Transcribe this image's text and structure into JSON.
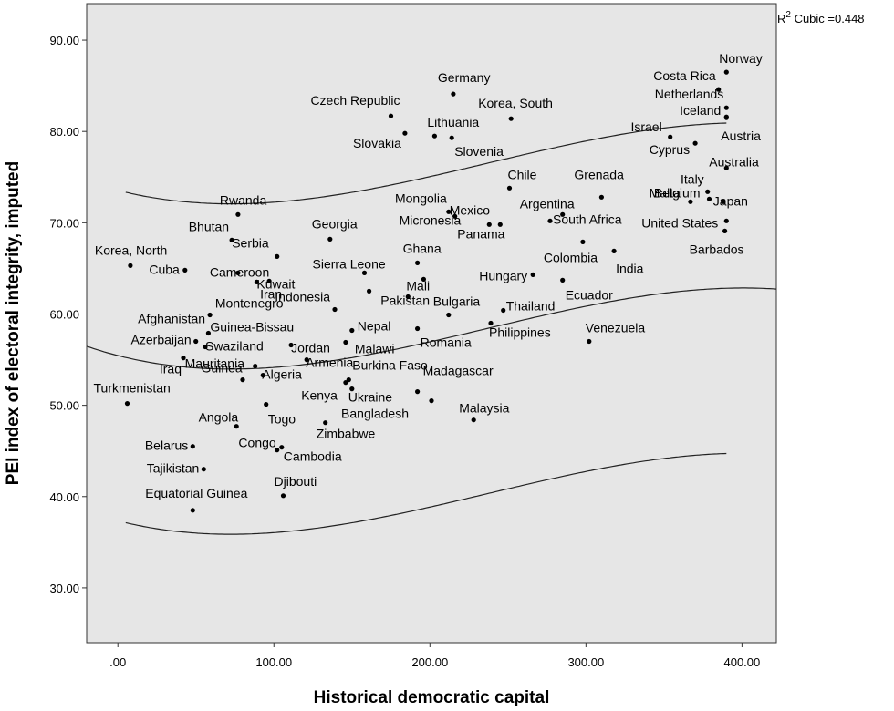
{
  "chart_data": {
    "type": "scatter",
    "xlabel": "Historical democratic capital",
    "ylabel": "PEI index of electoral integrity, imputed",
    "xlim": [
      -20,
      422
    ],
    "ylim": [
      24,
      94
    ],
    "x_ticks": [
      ".00",
      "100.00",
      "200.00",
      "300.00",
      "400.00"
    ],
    "x_tick_values": [
      0,
      100,
      200,
      300,
      400
    ],
    "y_ticks": [
      "30.00",
      "40.00",
      "50.00",
      "60.00",
      "70.00",
      "80.00",
      "90.00"
    ],
    "y_tick_values": [
      30,
      40,
      50,
      60,
      70,
      80,
      90
    ],
    "grid": false,
    "annotation": {
      "prefix": "R",
      "sup": "2",
      "text": " Cubic =0.448"
    },
    "fit": {
      "type": "cubic",
      "coef": [
        55.45,
        -0.0435,
        0.000355,
        -5e-07
      ],
      "x_range": [
        -20,
        422
      ],
      "band_upper_offset": 18.1,
      "band_lower_offset": -18.1
    },
    "points": [
      {
        "label": "Norway",
        "x": 390,
        "y": 86.5
      },
      {
        "label": "Costa Rica",
        "x": 385,
        "y": 84.6
      },
      {
        "label": "Germany",
        "x": 215,
        "y": 84.1
      },
      {
        "label": "Netherlands",
        "x": 390,
        "y": 82.6
      },
      {
        "label": "Czech Republic",
        "x": 175,
        "y": 81.7
      },
      {
        "label": "Korea, South",
        "x": 252,
        "y": 81.4
      },
      {
        "label": "Iceland",
        "x": 390,
        "y": 81.6
      },
      {
        "label": "Lithuania",
        "x": 203,
        "y": 79.5
      },
      {
        "label": "Israel",
        "x": 354,
        "y": 79.4
      },
      {
        "label": "Slovakia",
        "x": 184,
        "y": 79.8
      },
      {
        "label": "Slovenia",
        "x": 214,
        "y": 79.3
      },
      {
        "label": "Austria",
        "x": 390,
        "y": 81.5
      },
      {
        "label": "Cyprus",
        "x": 370,
        "y": 78.7
      },
      {
        "label": "Australia",
        "x": 390,
        "y": 76.0
      },
      {
        "label": "Chile",
        "x": 251,
        "y": 73.8
      },
      {
        "label": "Grenada",
        "x": 310,
        "y": 72.8
      },
      {
        "label": "Italy",
        "x": 378,
        "y": 73.4
      },
      {
        "label": "Malta",
        "x": 367,
        "y": 72.3
      },
      {
        "label": "Japan",
        "x": 388,
        "y": 72.3
      },
      {
        "label": "Rwanda",
        "x": 77,
        "y": 70.9
      },
      {
        "label": "Mongolia",
        "x": 212,
        "y": 71.2
      },
      {
        "label": "Argentina",
        "x": 285,
        "y": 70.9
      },
      {
        "label": "Mexico",
        "x": 216,
        "y": 70.7
      },
      {
        "label": "Belgium",
        "x": 379,
        "y": 72.6
      },
      {
        "label": "Micronesia",
        "x": 238,
        "y": 69.8
      },
      {
        "label": "Georgia",
        "x": 136,
        "y": 68.2
      },
      {
        "label": "Bhutan",
        "x": 73,
        "y": 68.1
      },
      {
        "label": "Panama",
        "x": 245,
        "y": 69.8
      },
      {
        "label": "South Africa",
        "x": 277,
        "y": 70.2
      },
      {
        "label": "United States",
        "x": 390,
        "y": 70.2
      },
      {
        "label": "Barbados",
        "x": 389,
        "y": 69.1
      },
      {
        "label": "Colombia",
        "x": 298,
        "y": 67.9
      },
      {
        "label": "India",
        "x": 318,
        "y": 66.9
      },
      {
        "label": "Korea, North",
        "x": 8,
        "y": 65.3
      },
      {
        "label": "Cuba",
        "x": 43,
        "y": 64.8
      },
      {
        "label": "Serbia",
        "x": 102,
        "y": 66.3
      },
      {
        "label": "Cameroon",
        "x": 77,
        "y": 64.5
      },
      {
        "label": "Kuwait",
        "x": 89,
        "y": 63.5
      },
      {
        "label": "Iran",
        "x": 97,
        "y": 63.6
      },
      {
        "label": "Sierra Leone",
        "x": 158,
        "y": 64.5
      },
      {
        "label": "Ghana",
        "x": 192,
        "y": 65.6
      },
      {
        "label": "Hungary",
        "x": 266,
        "y": 64.3
      },
      {
        "label": "Montenegro",
        "x": 161,
        "y": 62.5
      },
      {
        "label": "Mali",
        "x": 196,
        "y": 63.8
      },
      {
        "label": "Ecuador",
        "x": 285,
        "y": 63.7
      },
      {
        "label": "Indonesia",
        "x": 139,
        "y": 60.5
      },
      {
        "label": "Pakistan",
        "x": 186,
        "y": 61.9
      },
      {
        "label": "Bulgaria",
        "x": 212,
        "y": 59.9
      },
      {
        "label": "Afghanistan",
        "x": 59,
        "y": 59.9
      },
      {
        "label": "Guinea-Bissau",
        "x": 58,
        "y": 57.9
      },
      {
        "label": "Thailand",
        "x": 247,
        "y": 60.4
      },
      {
        "label": "Nepal",
        "x": 150,
        "y": 58.2
      },
      {
        "label": "Romania",
        "x": 192,
        "y": 58.4
      },
      {
        "label": "Philippines",
        "x": 239,
        "y": 59.0
      },
      {
        "label": "Venezuela",
        "x": 302,
        "y": 57.0
      },
      {
        "label": "Azerbaijan",
        "x": 50,
        "y": 57.0
      },
      {
        "label": "Swaziland",
        "x": 56,
        "y": 56.4
      },
      {
        "label": "Jordan",
        "x": 111,
        "y": 56.6
      },
      {
        "label": "Malawi",
        "x": 146,
        "y": 56.9
      },
      {
        "label": "Iraq",
        "x": 42,
        "y": 55.2
      },
      {
        "label": "Guinea",
        "x": 88,
        "y": 54.3
      },
      {
        "label": "Armenia",
        "x": 121,
        "y": 55.0
      },
      {
        "label": "Algeria",
        "x": 93,
        "y": 53.3
      },
      {
        "label": "Burkina Faso",
        "x": 148,
        "y": 52.8
      },
      {
        "label": "Kenya",
        "x": 146,
        "y": 52.5
      },
      {
        "label": "Ukraine",
        "x": 150,
        "y": 51.8
      },
      {
        "label": "Mauritania",
        "x": 80,
        "y": 52.8
      },
      {
        "label": "Turkmenistan",
        "x": 6,
        "y": 50.2
      },
      {
        "label": "Madagascar",
        "x": 192,
        "y": 51.5
      },
      {
        "label": "Bangladesh",
        "x": 201,
        "y": 50.5
      },
      {
        "label": "Togo",
        "x": 95,
        "y": 50.1
      },
      {
        "label": "Malaysia",
        "x": 228,
        "y": 48.4
      },
      {
        "label": "Angola",
        "x": 76,
        "y": 47.7
      },
      {
        "label": "Zimbabwe",
        "x": 133,
        "y": 48.1
      },
      {
        "label": "Belarus",
        "x": 48,
        "y": 45.5
      },
      {
        "label": "Congo",
        "x": 102,
        "y": 45.1
      },
      {
        "label": "Cambodia",
        "x": 105,
        "y": 45.4
      },
      {
        "label": "Tajikistan",
        "x": 55,
        "y": 43.0
      },
      {
        "label": "Djibouti",
        "x": 106,
        "y": 40.1
      },
      {
        "label": "Equatorial Guinea",
        "x": 48,
        "y": 38.5
      }
    ]
  }
}
